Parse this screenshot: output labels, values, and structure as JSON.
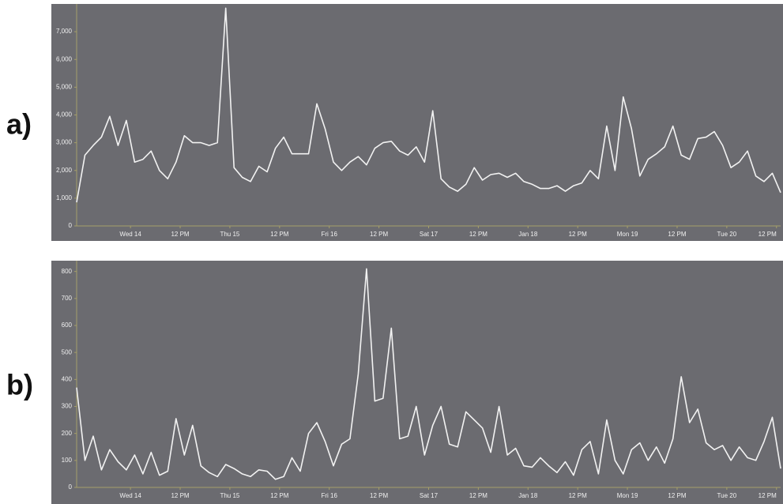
{
  "chart_data": [
    {
      "type": "line",
      "panel_label": "a)",
      "x": [
        0,
        2,
        4,
        6,
        8,
        10,
        12,
        14,
        16,
        18,
        20,
        22,
        24,
        26,
        28,
        30,
        32,
        34,
        36,
        38,
        40,
        42,
        44,
        46,
        48,
        50,
        52,
        54,
        56,
        58,
        60,
        62,
        64,
        66,
        68,
        70,
        72,
        74,
        76,
        78,
        80,
        82,
        84,
        86,
        88,
        90,
        92,
        94,
        96,
        98,
        100,
        102,
        104,
        106,
        108,
        110,
        112,
        114,
        116,
        118,
        120,
        122,
        124,
        126,
        128,
        130,
        132,
        134,
        136,
        138,
        140,
        142,
        144,
        146,
        148,
        150,
        152,
        154,
        156,
        158,
        160,
        162,
        164,
        166,
        168,
        170
      ],
      "values": [
        850,
        2550,
        2900,
        3200,
        3950,
        2900,
        3800,
        2300,
        2400,
        2700,
        2000,
        1700,
        2300,
        3250,
        3000,
        3000,
        2900,
        3000,
        7850,
        2100,
        1750,
        1600,
        2150,
        1950,
        2800,
        3200,
        2600,
        2600,
        2600,
        4400,
        3500,
        2300,
        2000,
        2300,
        2500,
        2200,
        2800,
        3000,
        3050,
        2700,
        2550,
        2850,
        2300,
        4150,
        1700,
        1400,
        1250,
        1500,
        2100,
        1650,
        1850,
        1900,
        1750,
        1900,
        1600,
        1500,
        1350,
        1350,
        1450,
        1250,
        1450,
        1550,
        2000,
        1700,
        3600,
        2000,
        4650,
        3500,
        1800,
        2400,
        2600,
        2850,
        3600,
        2550,
        2400,
        3150,
        3200,
        3400,
        2900,
        2100,
        2300,
        2700,
        1800,
        1600,
        1900,
        1200
      ],
      "color": "#f2f2f2",
      "xlim": [
        0,
        170
      ],
      "xticks": [
        {
          "value": 13,
          "label": "Wed 14"
        },
        {
          "value": 25,
          "label": "12 PM"
        },
        {
          "value": 37,
          "label": "Thu 15"
        },
        {
          "value": 49,
          "label": "12 PM"
        },
        {
          "value": 61,
          "label": "Fri 16"
        },
        {
          "value": 73,
          "label": "12 PM"
        },
        {
          "value": 85,
          "label": "Sat 17"
        },
        {
          "value": 97,
          "label": "12 PM"
        },
        {
          "value": 109,
          "label": "Jan 18"
        },
        {
          "value": 121,
          "label": "12 PM"
        },
        {
          "value": 133,
          "label": "Mon 19"
        },
        {
          "value": 145,
          "label": "12 PM"
        },
        {
          "value": 157,
          "label": "Tue 20"
        },
        {
          "value": 169,
          "label": "12 PM"
        }
      ],
      "ylim": [
        0,
        8000
      ],
      "yticks": [
        0,
        {
          "value": 1000,
          "label": "1,000"
        },
        {
          "value": 2000,
          "label": "2,000"
        },
        {
          "value": 3000,
          "label": "3,000"
        },
        {
          "value": 4000,
          "label": "4,000"
        },
        {
          "value": 5000,
          "label": "5,000"
        },
        {
          "value": 6000,
          "label": "6,000"
        },
        {
          "value": 7000,
          "label": "7,000"
        }
      ],
      "grid": false
    },
    {
      "type": "line",
      "panel_label": "b)",
      "x": [
        0,
        2,
        4,
        6,
        8,
        10,
        12,
        14,
        16,
        18,
        20,
        22,
        24,
        26,
        28,
        30,
        32,
        34,
        36,
        38,
        40,
        42,
        44,
        46,
        48,
        50,
        52,
        54,
        56,
        58,
        60,
        62,
        64,
        66,
        68,
        70,
        72,
        74,
        76,
        78,
        80,
        82,
        84,
        86,
        88,
        90,
        92,
        94,
        96,
        98,
        100,
        102,
        104,
        106,
        108,
        110,
        112,
        114,
        116,
        118,
        120,
        122,
        124,
        126,
        128,
        130,
        132,
        134,
        136,
        138,
        140,
        142,
        144,
        146,
        148,
        150,
        152,
        154,
        156,
        158,
        160,
        162,
        164,
        166,
        168,
        170
      ],
      "values": [
        370,
        100,
        190,
        65,
        140,
        95,
        65,
        120,
        50,
        130,
        45,
        60,
        255,
        120,
        230,
        80,
        55,
        40,
        85,
        70,
        50,
        40,
        65,
        60,
        30,
        40,
        110,
        60,
        200,
        240,
        170,
        80,
        160,
        180,
        420,
        810,
        320,
        330,
        590,
        180,
        190,
        300,
        120,
        230,
        300,
        160,
        150,
        280,
        250,
        220,
        130,
        300,
        120,
        145,
        80,
        75,
        110,
        80,
        55,
        95,
        45,
        140,
        170,
        50,
        250,
        100,
        50,
        140,
        165,
        100,
        150,
        90,
        180,
        410,
        240,
        290,
        165,
        140,
        155,
        100,
        150,
        110,
        100,
        170,
        260,
        70
      ],
      "color": "#f2f2f2",
      "xlim": [
        0,
        170
      ],
      "xticks": [
        {
          "value": 13,
          "label": "Wed 14"
        },
        {
          "value": 25,
          "label": "12 PM"
        },
        {
          "value": 37,
          "label": "Thu 15"
        },
        {
          "value": 49,
          "label": "12 PM"
        },
        {
          "value": 61,
          "label": "Fri 16"
        },
        {
          "value": 73,
          "label": "12 PM"
        },
        {
          "value": 85,
          "label": "Sat 17"
        },
        {
          "value": 97,
          "label": "12 PM"
        },
        {
          "value": 109,
          "label": "Jan 18"
        },
        {
          "value": 121,
          "label": "12 PM"
        },
        {
          "value": 133,
          "label": "Mon 19"
        },
        {
          "value": 145,
          "label": "12 PM"
        },
        {
          "value": 157,
          "label": "Tue 20"
        },
        {
          "value": 169,
          "label": "12 PM"
        }
      ],
      "ylim": [
        0,
        840
      ],
      "yticks": [
        0,
        100,
        200,
        300,
        400,
        500,
        600,
        700,
        800
      ],
      "grid": false
    }
  ]
}
